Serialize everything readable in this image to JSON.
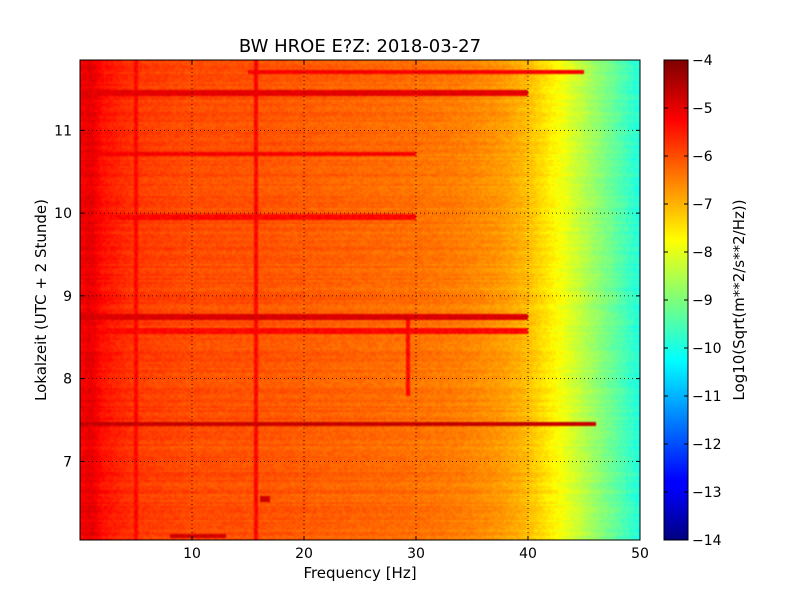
{
  "chart_data": {
    "type": "heatmap",
    "title": "BW HROE E?Z: 2018-03-27",
    "xlabel": "Frequency [Hz]",
    "ylabel": "Lokalzeit (UTC + 2 Stunde)",
    "colorbar_label": "Log10(Sqrt(m**2/s**2/Hz))",
    "xlim": [
      0,
      50
    ],
    "ylim": [
      11.85,
      6.05
    ],
    "x_ticks": [
      10,
      20,
      30,
      40,
      50
    ],
    "y_ticks": [
      7,
      8,
      9,
      10,
      11
    ],
    "colorbar_range": [
      -14,
      -4
    ],
    "colorbar_ticks": [
      -4,
      -5,
      -6,
      -7,
      -8,
      -9,
      -10,
      -11,
      -12,
      -13,
      -14
    ],
    "colormap": "jet",
    "grid": true,
    "frequency_profile": {
      "frequency_hz": [
        0,
        1,
        2,
        5,
        10,
        15,
        20,
        25,
        30,
        33,
        35,
        37,
        38,
        39,
        40,
        41,
        42,
        43,
        44,
        45,
        46,
        47,
        48,
        49,
        50
      ],
      "log10_value": [
        -5.2,
        -5.0,
        -5.4,
        -5.8,
        -6.0,
        -6.05,
        -6.15,
        -6.25,
        -6.35,
        -6.45,
        -6.55,
        -6.7,
        -6.8,
        -6.95,
        -7.1,
        -7.35,
        -7.6,
        -7.85,
        -8.15,
        -8.45,
        -8.75,
        -9.05,
        -9.35,
        -9.65,
        -9.95
      ]
    },
    "horizontal_bands": [
      {
        "time": 6.1,
        "fmin": 8,
        "fmax": 13,
        "log10_value": -4.8
      },
      {
        "time": 6.55,
        "fmin": 16,
        "fmax": 17,
        "log10_value": -4.8
      },
      {
        "time": 7.45,
        "fmin": 0,
        "fmax": 46,
        "log10_value": -4.7
      },
      {
        "time": 8.58,
        "fmin": 0,
        "fmax": 40,
        "log10_value": -5.3
      },
      {
        "time": 8.75,
        "fmin": 0,
        "fmax": 40,
        "log10_value": -4.9
      },
      {
        "time": 9.95,
        "fmin": 0,
        "fmax": 30,
        "log10_value": -5.3
      },
      {
        "time": 10.72,
        "fmin": 0,
        "fmax": 30,
        "log10_value": -5.2
      },
      {
        "time": 11.45,
        "fmin": 0,
        "fmax": 40,
        "log10_value": -5.0
      },
      {
        "time": 11.7,
        "fmin": 15,
        "fmax": 45,
        "log10_value": -5.2
      }
    ],
    "vertical_lines": [
      {
        "frequency_hz": 5,
        "log10_value": -5.3
      },
      {
        "frequency_hz": 15.7,
        "log10_value": -5.3
      },
      {
        "frequency_hz": 29.3,
        "tmin": 7.8,
        "tmax": 8.7,
        "log10_value": -5.3
      }
    ]
  }
}
